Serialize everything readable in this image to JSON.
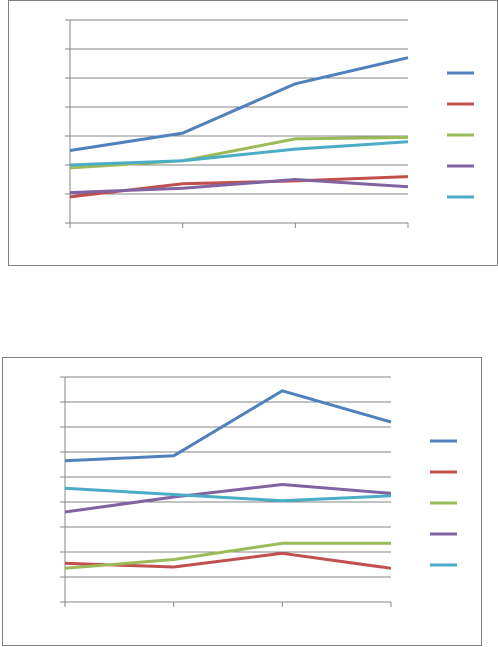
{
  "chart_data": [
    {
      "type": "line",
      "categories": [
        "",
        "",
        "",
        ""
      ],
      "ylim": [
        0,
        7
      ],
      "grid": true,
      "legend": "right",
      "series": [
        {
          "color": "#4f81bd",
          "values": [
            2.5,
            3.1,
            4.8,
            5.7
          ]
        },
        {
          "color": "#c0504d",
          "values": [
            0.9,
            1.35,
            1.45,
            1.6
          ]
        },
        {
          "color": "#9bbb59",
          "values": [
            1.9,
            2.15,
            2.9,
            2.95
          ]
        },
        {
          "color": "#8064a2",
          "values": [
            1.05,
            1.2,
            1.5,
            1.25
          ]
        },
        {
          "color": "#4bacc6",
          "values": [
            2.0,
            2.15,
            2.55,
            2.8
          ]
        }
      ]
    },
    {
      "type": "line",
      "categories": [
        "",
        "",
        "",
        ""
      ],
      "ylim": [
        0,
        9
      ],
      "grid": true,
      "legend": "right",
      "series": [
        {
          "color": "#4f81bd",
          "values": [
            5.65,
            5.85,
            8.45,
            7.2
          ]
        },
        {
          "color": "#c0504d",
          "values": [
            1.55,
            1.4,
            1.95,
            1.35
          ]
        },
        {
          "color": "#9bbb59",
          "values": [
            1.35,
            1.7,
            2.35,
            2.35
          ]
        },
        {
          "color": "#8064a2",
          "values": [
            3.6,
            4.2,
            4.7,
            4.35
          ]
        },
        {
          "color": "#4bacc6",
          "values": [
            4.55,
            4.3,
            4.05,
            4.25
          ]
        }
      ]
    }
  ]
}
